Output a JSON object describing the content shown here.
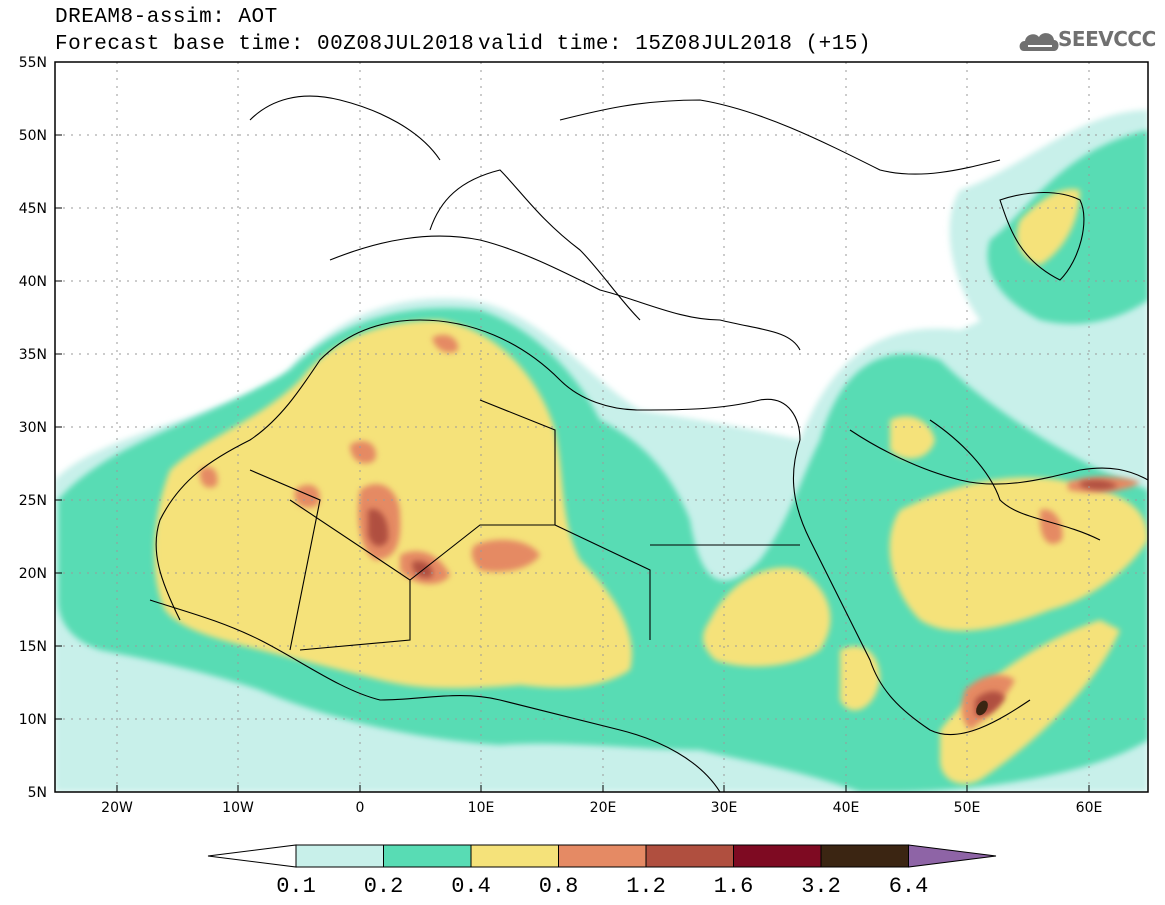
{
  "header": {
    "title": "DREAM8-assim: AOT",
    "base_time": "Forecast base time: 00Z08JUL2018",
    "valid_time": "valid time: 15Z08JUL2018 (+15)",
    "logo_text": "SEEVCCC"
  },
  "map": {
    "projection": "lat-lon",
    "lon_range": [
      -25,
      65
    ],
    "lat_range": [
      5,
      55
    ],
    "lat_ticks": [
      "5N",
      "10N",
      "15N",
      "20N",
      "25N",
      "30N",
      "35N",
      "40N",
      "45N",
      "50N",
      "55N"
    ],
    "lon_ticks": [
      "20W",
      "10W",
      "0",
      "10E",
      "20E",
      "30E",
      "40E",
      "50E",
      "60E"
    ]
  },
  "colorbar": {
    "levels": [
      "0.1",
      "0.2",
      "0.4",
      "0.8",
      "1.2",
      "1.6",
      "3.2",
      "6.4"
    ],
    "colors": [
      "#ffffff",
      "#c8f0ea",
      "#58dcb4",
      "#f5e27a",
      "#e58a64",
      "#b04f3f",
      "#7e0a22",
      "#3b2512",
      "#8e64a6"
    ]
  },
  "icons": [
    "cloud-logo-icon"
  ]
}
